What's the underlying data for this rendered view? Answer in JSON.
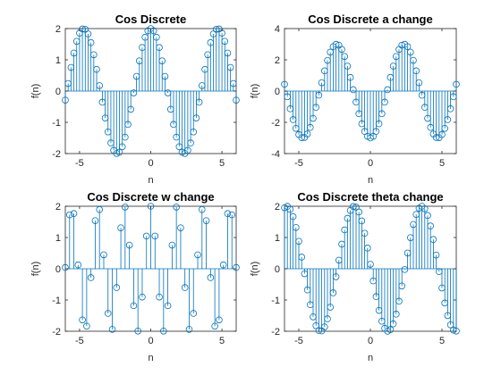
{
  "colors": {
    "stem": "#0072bd",
    "axis": "#262626",
    "background": "#ffffff"
  },
  "chart_data": [
    {
      "type": "stem",
      "title": "Cos Discrete",
      "xlabel": "n",
      "ylabel": "f(n)",
      "xlim": [
        -6,
        6
      ],
      "ylim": [
        -2,
        2
      ],
      "xticks": [
        -5,
        0,
        5
      ],
      "yticks": [
        -2,
        -1,
        0,
        1,
        2
      ],
      "n_range": [
        -6,
        6
      ],
      "n_step": 0.2,
      "formula": {
        "A": 2,
        "w": 1.3333,
        "theta": 0
      },
      "grid": false
    },
    {
      "type": "stem",
      "title": "Cos Discrete a change",
      "xlabel": "n",
      "ylabel": "f(n)",
      "xlim": [
        -6,
        6
      ],
      "ylim": [
        -4,
        4
      ],
      "xticks": [
        -5,
        0,
        5
      ],
      "yticks": [
        -4,
        -2,
        0,
        2,
        4
      ],
      "n_range": [
        -6,
        6
      ],
      "n_step": 0.2,
      "formula": {
        "A": 3,
        "w": 1.3333,
        "theta": 3.14159
      },
      "grid": false
    },
    {
      "type": "stem",
      "title": "Cos Discrete w change",
      "xlabel": "n",
      "ylabel": "f(n)",
      "xlim": [
        -6,
        6
      ],
      "ylim": [
        -2,
        2
      ],
      "xticks": [
        -5,
        0,
        5
      ],
      "yticks": [
        -2,
        -1,
        0,
        1,
        2
      ],
      "n_range": [
        -6,
        6
      ],
      "n_step": 0.3,
      "formula": {
        "A": 2,
        "w": 3.4,
        "theta": 0
      },
      "grid": false
    },
    {
      "type": "stem",
      "title": "Cos Discrete theta change",
      "xlabel": "n",
      "ylabel": "f(n)",
      "xlim": [
        -6,
        6
      ],
      "ylim": [
        -2,
        2
      ],
      "xticks": [
        -5,
        0,
        5
      ],
      "yticks": [
        -2,
        -1,
        0,
        1,
        2
      ],
      "n_range": [
        -6,
        6
      ],
      "n_step": 0.2,
      "formula": {
        "A": 2,
        "w": 1.3333,
        "theta": 1.5
      },
      "grid": false
    }
  ]
}
